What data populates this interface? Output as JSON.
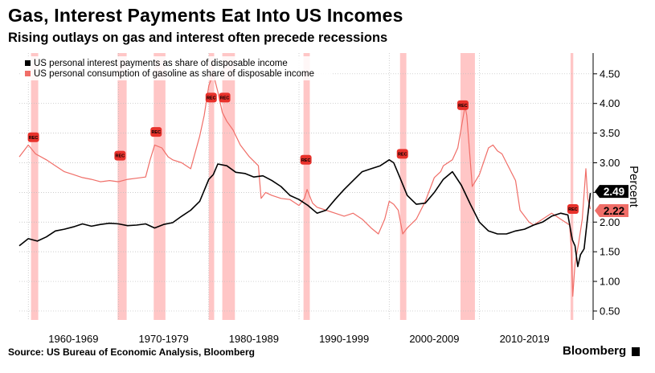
{
  "title": "Gas, Interest Payments Eat Into US Incomes",
  "subtitle": "Rising outlays on gas and interest often precede recessions",
  "source": "Source: US Bureau of Economic Analysis, Bloomberg",
  "brand": "Bloomberg",
  "colors": {
    "interest": "#000000",
    "gasoline": "#f06e68",
    "recession": "#ffbcbc",
    "grid": "#bbbbbb"
  },
  "chart_data": {
    "type": "line",
    "ylabel": "Percent",
    "ylim": [
      0.35,
      4.85
    ],
    "yticks": [
      0.5,
      1.0,
      1.5,
      2.0,
      2.5,
      3.0,
      3.5,
      4.0,
      4.5
    ],
    "ytick_labels": [
      "0.50",
      "1.00",
      "1.50",
      "2.00",
      "2.50",
      "3.00",
      "3.50",
      "4.00",
      "4.50"
    ],
    "xlim": [
      1959.0,
      2022.6
    ],
    "decades": [
      {
        "label": "1960-1969",
        "start": 1960
      },
      {
        "label": "1970-1979",
        "start": 1970
      },
      {
        "label": "1980-1989",
        "start": 1980
      },
      {
        "label": "1990-1999",
        "start": 1990
      },
      {
        "label": "2000-2009",
        "start": 2000
      },
      {
        "label": "2010-2019",
        "start": 2010
      }
    ],
    "recession_marker": "REC",
    "recessions": [
      {
        "start": 1960.3,
        "end": 1961.1
      },
      {
        "start": 1969.9,
        "end": 1970.9
      },
      {
        "start": 1973.9,
        "end": 1975.2
      },
      {
        "start": 1980.0,
        "end": 1980.6
      },
      {
        "start": 1981.5,
        "end": 1982.9
      },
      {
        "start": 1990.5,
        "end": 1991.2
      },
      {
        "start": 2001.2,
        "end": 2001.9
      },
      {
        "start": 2007.9,
        "end": 2009.5
      },
      {
        "start": 2020.1,
        "end": 2020.4
      }
    ],
    "legend_position": "top-left",
    "series": [
      {
        "name": "US personal interest payments as share of disposable income",
        "last_value": "2.49",
        "x": [
          1959.0,
          1960.0,
          1961.0,
          1962.0,
          1963.0,
          1964.0,
          1965.0,
          1966.0,
          1967.0,
          1968.0,
          1969.0,
          1970.0,
          1971.0,
          1972.0,
          1973.0,
          1974.0,
          1975.0,
          1976.0,
          1977.0,
          1978.0,
          1979.0,
          1980.0,
          1980.5,
          1981.0,
          1982.0,
          1983.0,
          1984.0,
          1985.0,
          1986.0,
          1987.0,
          1988.0,
          1989.0,
          1990.0,
          1991.0,
          1992.0,
          1993.0,
          1994.0,
          1995.0,
          1996.0,
          1997.0,
          1998.0,
          1999.0,
          2000.0,
          2000.5,
          2001.0,
          2002.0,
          2003.0,
          2004.0,
          2005.0,
          2006.0,
          2007.0,
          2008.0,
          2009.0,
          2010.0,
          2011.0,
          2012.0,
          2013.0,
          2014.0,
          2015.0,
          2016.0,
          2017.0,
          2018.0,
          2019.0,
          2019.8,
          2020.3,
          2020.6,
          2020.9,
          2021.2,
          2021.6,
          2022.0,
          2022.3
        ],
        "y": [
          1.6,
          1.72,
          1.68,
          1.75,
          1.85,
          1.88,
          1.92,
          1.97,
          1.93,
          1.96,
          1.98,
          1.97,
          1.94,
          1.95,
          1.97,
          1.9,
          1.96,
          1.99,
          2.1,
          2.2,
          2.35,
          2.72,
          2.8,
          2.98,
          2.95,
          2.84,
          2.82,
          2.76,
          2.78,
          2.7,
          2.6,
          2.45,
          2.38,
          2.28,
          2.15,
          2.2,
          2.38,
          2.55,
          2.7,
          2.85,
          2.9,
          2.95,
          3.05,
          3.0,
          2.82,
          2.45,
          2.3,
          2.32,
          2.5,
          2.72,
          2.85,
          2.62,
          2.3,
          2.0,
          1.85,
          1.8,
          1.8,
          1.85,
          1.88,
          1.95,
          2.0,
          2.1,
          2.15,
          2.12,
          1.7,
          1.6,
          1.25,
          1.45,
          1.55,
          2.1,
          2.49
        ]
      },
      {
        "name": "US personal consumption of gasoline as share of disposable income",
        "last_value": "2.22",
        "x": [
          1959.0,
          1960.0,
          1960.8,
          1962.0,
          1963.0,
          1964.0,
          1965.0,
          1966.0,
          1967.0,
          1968.0,
          1969.0,
          1970.0,
          1971.0,
          1972.0,
          1973.0,
          1973.5,
          1974.0,
          1974.8,
          1975.5,
          1976.0,
          1977.0,
          1978.0,
          1979.0,
          1979.5,
          1980.0,
          1980.5,
          1981.0,
          1981.5,
          1982.0,
          1982.7,
          1983.5,
          1984.5,
          1985.5,
          1985.8,
          1986.3,
          1987.0,
          1988.0,
          1989.0,
          1990.0,
          1990.6,
          1990.9,
          1991.5,
          1992.0,
          1993.0,
          1994.0,
          1995.0,
          1996.0,
          1997.0,
          1998.0,
          1998.8,
          1999.5,
          2000.0,
          2000.5,
          2001.0,
          2001.5,
          2002.0,
          2003.0,
          2004.0,
          2005.0,
          2005.7,
          2006.0,
          2007.0,
          2007.6,
          2008.0,
          2008.4,
          2008.6,
          2008.9,
          2009.2,
          2010.0,
          2011.0,
          2011.5,
          2012.0,
          2012.5,
          2013.0,
          2014.0,
          2014.5,
          2015.0,
          2015.5,
          2016.0,
          2017.0,
          2018.0,
          2018.5,
          2019.0,
          2019.5,
          2020.0,
          2020.2,
          2020.35,
          2020.6,
          2021.0,
          2021.4,
          2021.8,
          2022.0,
          2022.3
        ],
        "y": [
          3.1,
          3.3,
          3.15,
          3.05,
          2.95,
          2.85,
          2.8,
          2.75,
          2.72,
          2.68,
          2.7,
          2.68,
          2.72,
          2.74,
          2.76,
          3.05,
          3.3,
          3.25,
          3.1,
          3.05,
          3.0,
          2.9,
          3.45,
          3.8,
          4.3,
          4.5,
          4.2,
          3.85,
          3.7,
          3.55,
          3.3,
          3.1,
          2.95,
          2.4,
          2.5,
          2.45,
          2.4,
          2.38,
          2.28,
          2.4,
          2.55,
          2.32,
          2.25,
          2.2,
          2.15,
          2.1,
          2.15,
          2.05,
          1.9,
          1.8,
          2.05,
          2.35,
          2.3,
          2.2,
          1.8,
          1.9,
          2.05,
          2.35,
          2.75,
          2.85,
          2.95,
          3.05,
          3.25,
          3.6,
          3.95,
          3.8,
          3.2,
          2.6,
          2.8,
          3.25,
          3.3,
          3.2,
          3.15,
          3.0,
          2.7,
          2.2,
          2.1,
          2.0,
          1.95,
          2.05,
          2.15,
          2.1,
          2.05,
          2.0,
          1.95,
          1.5,
          0.75,
          1.3,
          1.65,
          2.05,
          2.9,
          2.4,
          2.22
        ]
      }
    ]
  }
}
